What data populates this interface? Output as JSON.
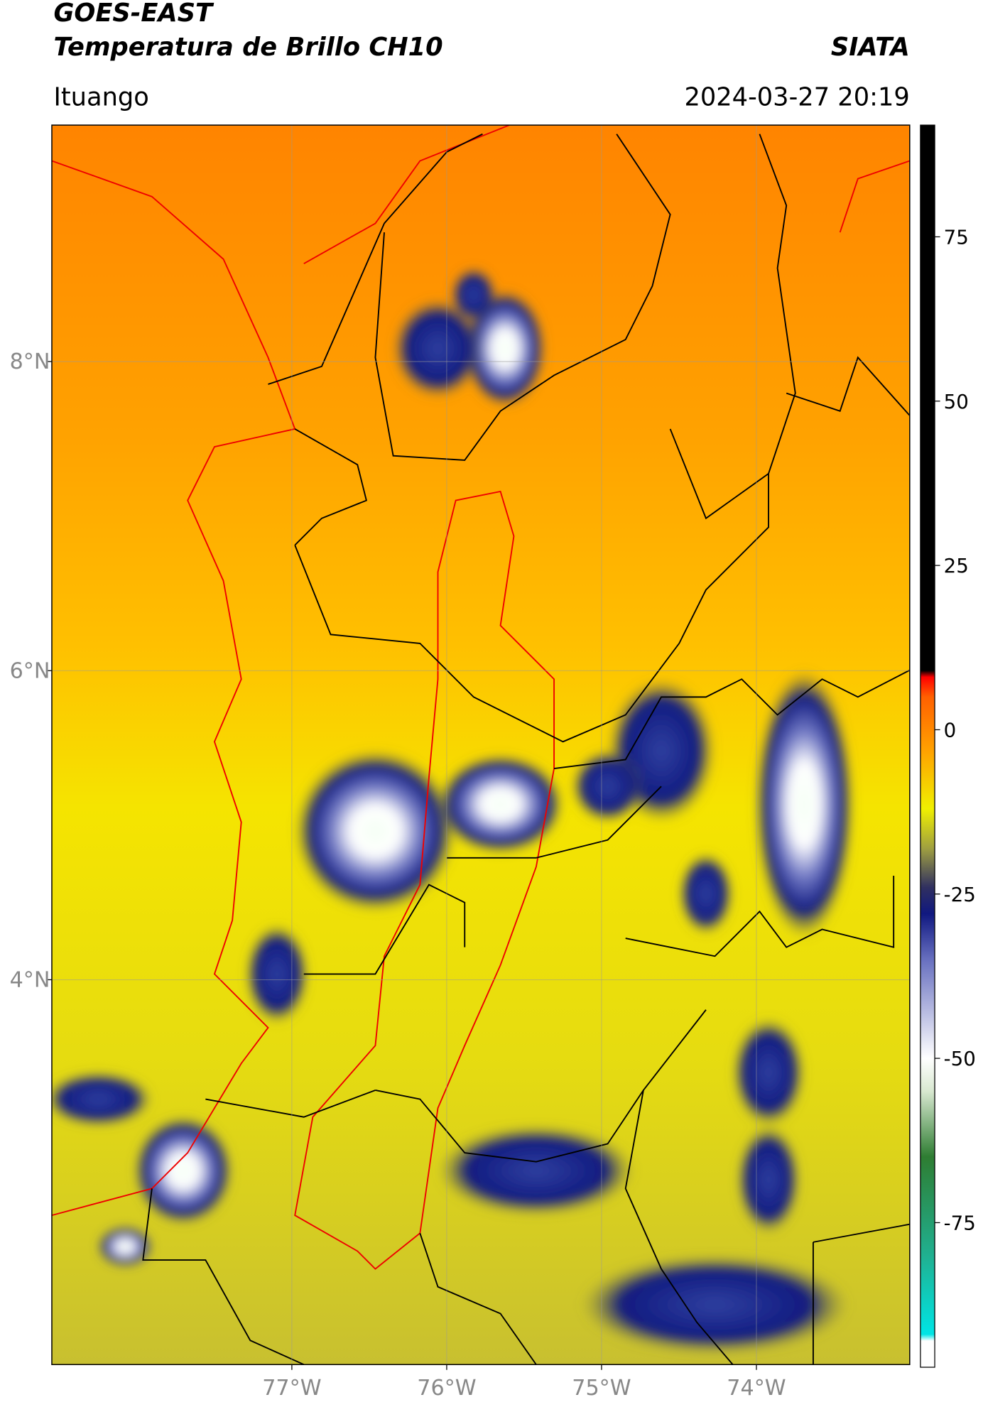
{
  "header": {
    "title": "GOES-EAST",
    "subtitle": "Temperatura de Brillo CH10",
    "source": "SIATA",
    "location": "Ituango",
    "datetime": "2024-03-27 20:19"
  },
  "map": {
    "xlim": [
      -78.55,
      -73.01
    ],
    "ylim": [
      1.51,
      9.53
    ],
    "xticks": [
      {
        "value": -77,
        "label": "77°W"
      },
      {
        "value": -76,
        "label": "76°W"
      },
      {
        "value": -75,
        "label": "75°W"
      },
      {
        "value": -74,
        "label": "74°W"
      }
    ],
    "yticks": [
      {
        "value": 4,
        "label": "4°N"
      },
      {
        "value": 6,
        "label": "6°N"
      },
      {
        "value": 8,
        "label": "8°N"
      }
    ],
    "grid": true
  },
  "colorbar": {
    "lim": [
      -97,
      92
    ],
    "ticks": [
      -75,
      -50,
      -25,
      0,
      25,
      50,
      75
    ],
    "stops": [
      {
        "value": -97,
        "color": "#ffffff"
      },
      {
        "value": -93,
        "color": "#ffffff"
      },
      {
        "value": -92,
        "color": "#00e5e5"
      },
      {
        "value": -80,
        "color": "#20b090"
      },
      {
        "value": -65,
        "color": "#2e7d32"
      },
      {
        "value": -55,
        "color": "#d8e8d0"
      },
      {
        "value": -50,
        "color": "#ffffff"
      },
      {
        "value": -35,
        "color": "#6870c0"
      },
      {
        "value": -28,
        "color": "#101880"
      },
      {
        "value": -24,
        "color": "#303060"
      },
      {
        "value": -18,
        "color": "#a0a040"
      },
      {
        "value": -12,
        "color": "#f0f000"
      },
      {
        "value": -3,
        "color": "#ffa000"
      },
      {
        "value": 5,
        "color": "#ff6000"
      },
      {
        "value": 8,
        "color": "#ff0000"
      },
      {
        "value": 9,
        "color": "#000000"
      },
      {
        "value": 92,
        "color": "#000000"
      }
    ]
  }
}
